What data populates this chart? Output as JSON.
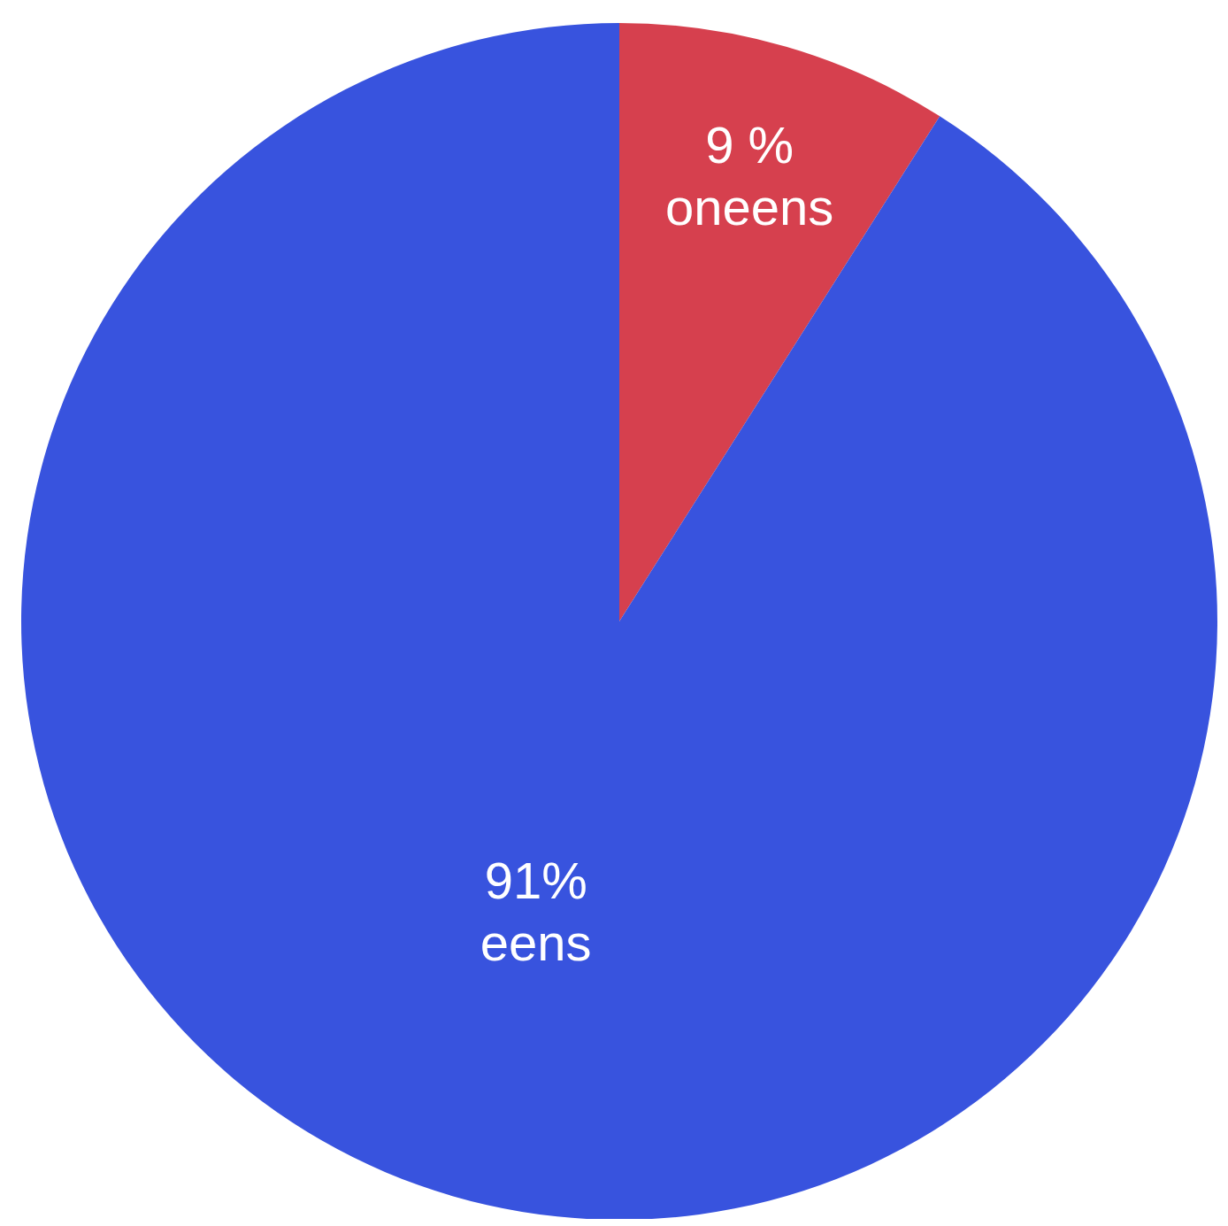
{
  "chart_data": {
    "type": "pie",
    "categories": [
      "oneens",
      "eens"
    ],
    "values": [
      9,
      91
    ],
    "colors": [
      "#d6404e",
      "#3853de"
    ],
    "value_labels": [
      "9 %",
      "91%"
    ]
  }
}
